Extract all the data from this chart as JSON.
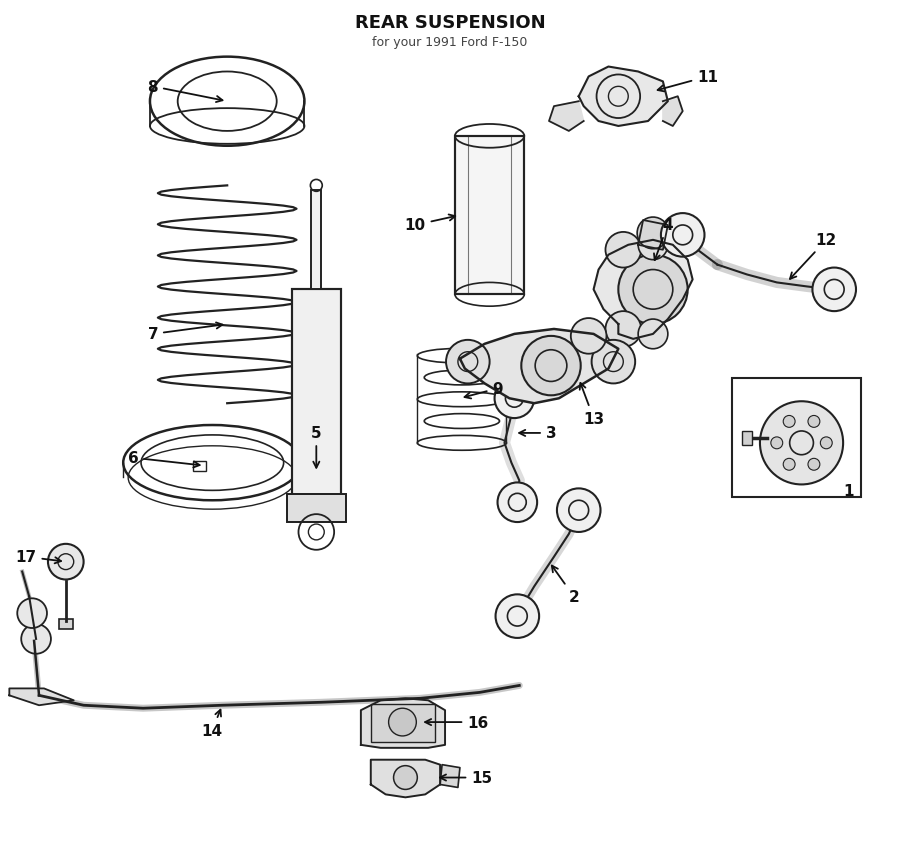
{
  "title": "REAR SUSPENSION",
  "subtitle": "for your 1991 Ford F-150",
  "bg_color": "#ffffff",
  "line_color": "#222222",
  "label_color": "#111111",
  "fig_width": 9.0,
  "fig_height": 8.54
}
